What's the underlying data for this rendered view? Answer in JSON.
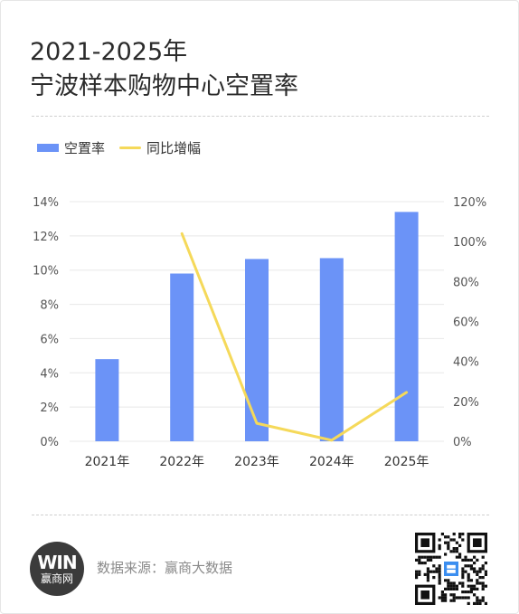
{
  "title": {
    "line1": "2021-2025年",
    "line2": "宁波样本购物中心空置率"
  },
  "legend": {
    "bar_label": "空置率",
    "line_label": "同比增幅"
  },
  "colors": {
    "bar": "#6b93f7",
    "line": "#f5d95a",
    "grid": "#e8e8e8",
    "axis_text": "#555555"
  },
  "chart_data": {
    "type": "bar",
    "categories": [
      "2021年",
      "2022年",
      "2023年",
      "2024年",
      "2025年"
    ],
    "series": [
      {
        "name": "空置率",
        "type": "bar",
        "axis": "left",
        "values": [
          4.8,
          9.8,
          10.65,
          10.7,
          13.4
        ]
      },
      {
        "name": "同比增幅",
        "type": "line",
        "axis": "right",
        "values": [
          null,
          104,
          9,
          0.5,
          24.5
        ]
      }
    ],
    "y_left": {
      "ticks": [
        "0%",
        "2%",
        "4%",
        "6%",
        "8%",
        "10%",
        "12%",
        "14%"
      ],
      "ylim": [
        0,
        14
      ]
    },
    "y_right": {
      "ticks": [
        "0%",
        "20%",
        "40%",
        "60%",
        "80%",
        "100%",
        "120%"
      ],
      "ylim": [
        0,
        120
      ]
    },
    "grid": true,
    "legend_position": "top-left"
  },
  "footer": {
    "logo_mark": "WIN",
    "logo_text": "赢商网",
    "source": "数据来源：赢商大数据",
    "qr_icon": "qr-code-icon"
  }
}
